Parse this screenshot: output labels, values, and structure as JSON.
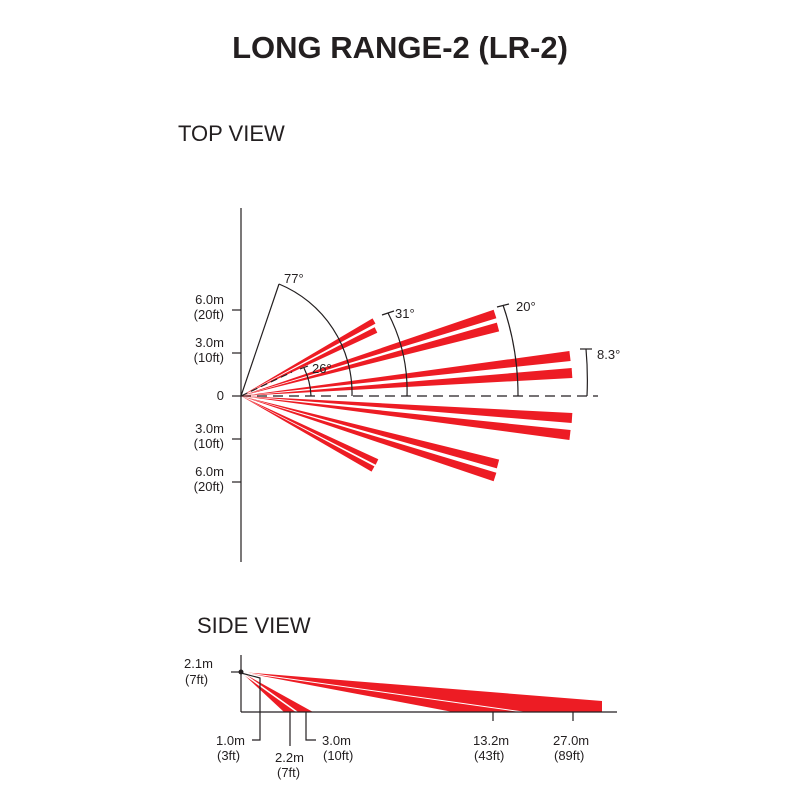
{
  "title": "LONG RANGE-2 (LR-2)",
  "top_view": {
    "heading": "TOP VIEW",
    "axis_labels": [
      {
        "m": "6.0m",
        "ft": "(20ft)"
      },
      {
        "m": "3.0m",
        "ft": "(10ft)"
      },
      {
        "m": "0",
        "ft": ""
      },
      {
        "m": "3.0m",
        "ft": "(10ft)"
      },
      {
        "m": "6.0m",
        "ft": "(20ft)"
      }
    ],
    "angles": [
      "77°",
      "26°",
      "31°",
      "20°",
      "8.3°"
    ]
  },
  "side_view": {
    "heading": "SIDE VIEW",
    "height_label": {
      "m": "2.1m",
      "ft": "(7ft)"
    },
    "distances": [
      {
        "m": "1.0m",
        "ft": "(3ft)"
      },
      {
        "m": "2.2m",
        "ft": "(7ft)"
      },
      {
        "m": "3.0m",
        "ft": "(10ft)"
      },
      {
        "m": "13.2m",
        "ft": "(43ft)"
      },
      {
        "m": "27.0m",
        "ft": "(89ft)"
      }
    ]
  },
  "colors": {
    "beam": "#ed1c24",
    "line": "#231f20"
  }
}
